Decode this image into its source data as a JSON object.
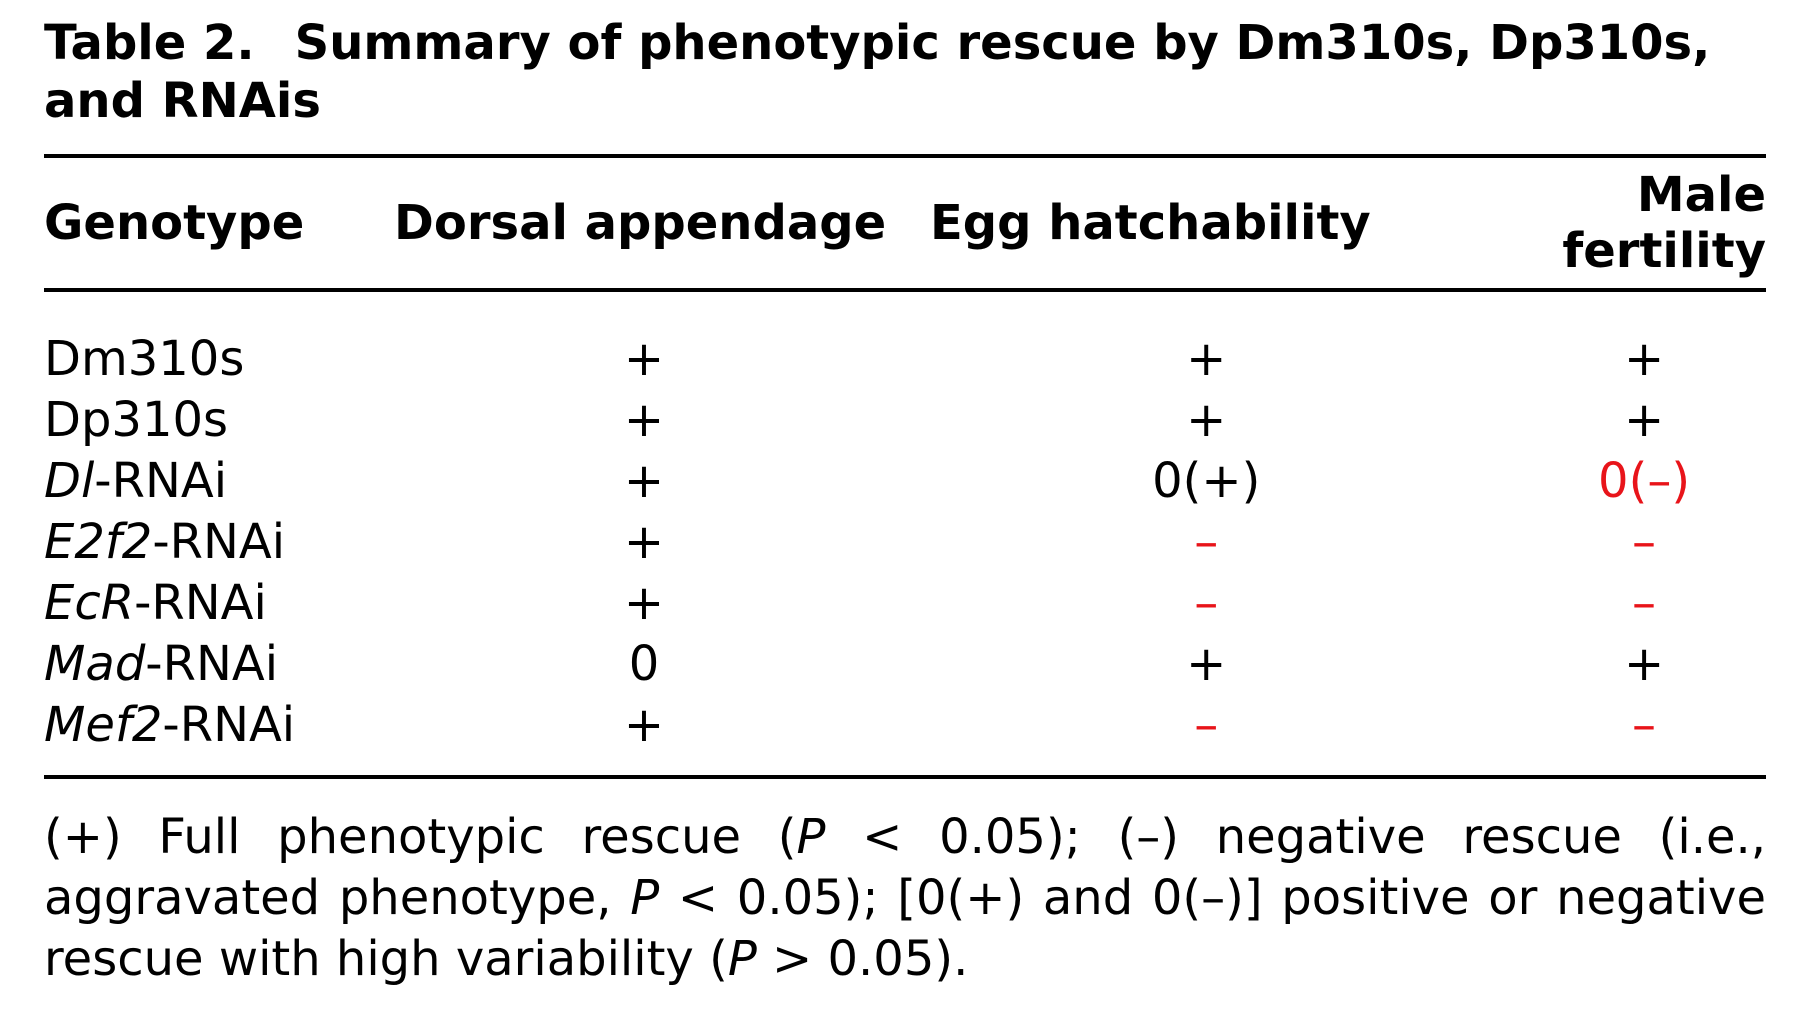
{
  "caption": {
    "label": "Table 2.",
    "title": "Summary of phenotypic rescue by Dm310s, Dp310s, and RNAis"
  },
  "columns": [
    "Genotype",
    "Dorsal appendage",
    "Egg hatchability",
    "Male fertility"
  ],
  "rows": [
    {
      "gene": "",
      "genotype": "Dm310s",
      "dorsal": "+",
      "egg": "+",
      "male": "+",
      "dorsal_color": "black",
      "egg_color": "black",
      "male_color": "black"
    },
    {
      "gene": "",
      "genotype": "Dp310s",
      "dorsal": "+",
      "egg": "+",
      "male": "+",
      "dorsal_color": "black",
      "egg_color": "black",
      "male_color": "black"
    },
    {
      "gene": "Dl",
      "genotype": "-RNAi",
      "dorsal": "+",
      "egg": "0(+)",
      "male": "0(–)",
      "dorsal_color": "black",
      "egg_color": "black",
      "male_color": "red"
    },
    {
      "gene": "E2f2",
      "genotype": "-RNAi",
      "dorsal": "+",
      "egg": "–",
      "male": "–",
      "dorsal_color": "black",
      "egg_color": "red",
      "male_color": "red"
    },
    {
      "gene": "EcR",
      "genotype": "-RNAi",
      "dorsal": "+",
      "egg": "–",
      "male": "–",
      "dorsal_color": "black",
      "egg_color": "red",
      "male_color": "red"
    },
    {
      "gene": "Mad",
      "genotype": "-RNAi",
      "dorsal": "0",
      "egg": "+",
      "male": "+",
      "dorsal_color": "black",
      "egg_color": "black",
      "male_color": "black"
    },
    {
      "gene": "Mef2",
      "genotype": "-RNAi",
      "dorsal": "+",
      "egg": "–",
      "male": "–",
      "dorsal_color": "black",
      "egg_color": "red",
      "male_color": "red"
    }
  ],
  "footnote": {
    "part1": "(+) Full phenotypic rescue (",
    "p1": "P",
    "part2": " < 0.05); (–) negative rescue (i.e., aggravated phenotype, ",
    "p2": "P",
    "part3": " < 0.05); [0(+) and 0(–)] positive or negative rescue with high variability (",
    "p3": "P",
    "part4": " > 0.05)."
  },
  "colors": {
    "red": "#e8141a",
    "black": "#000000"
  }
}
